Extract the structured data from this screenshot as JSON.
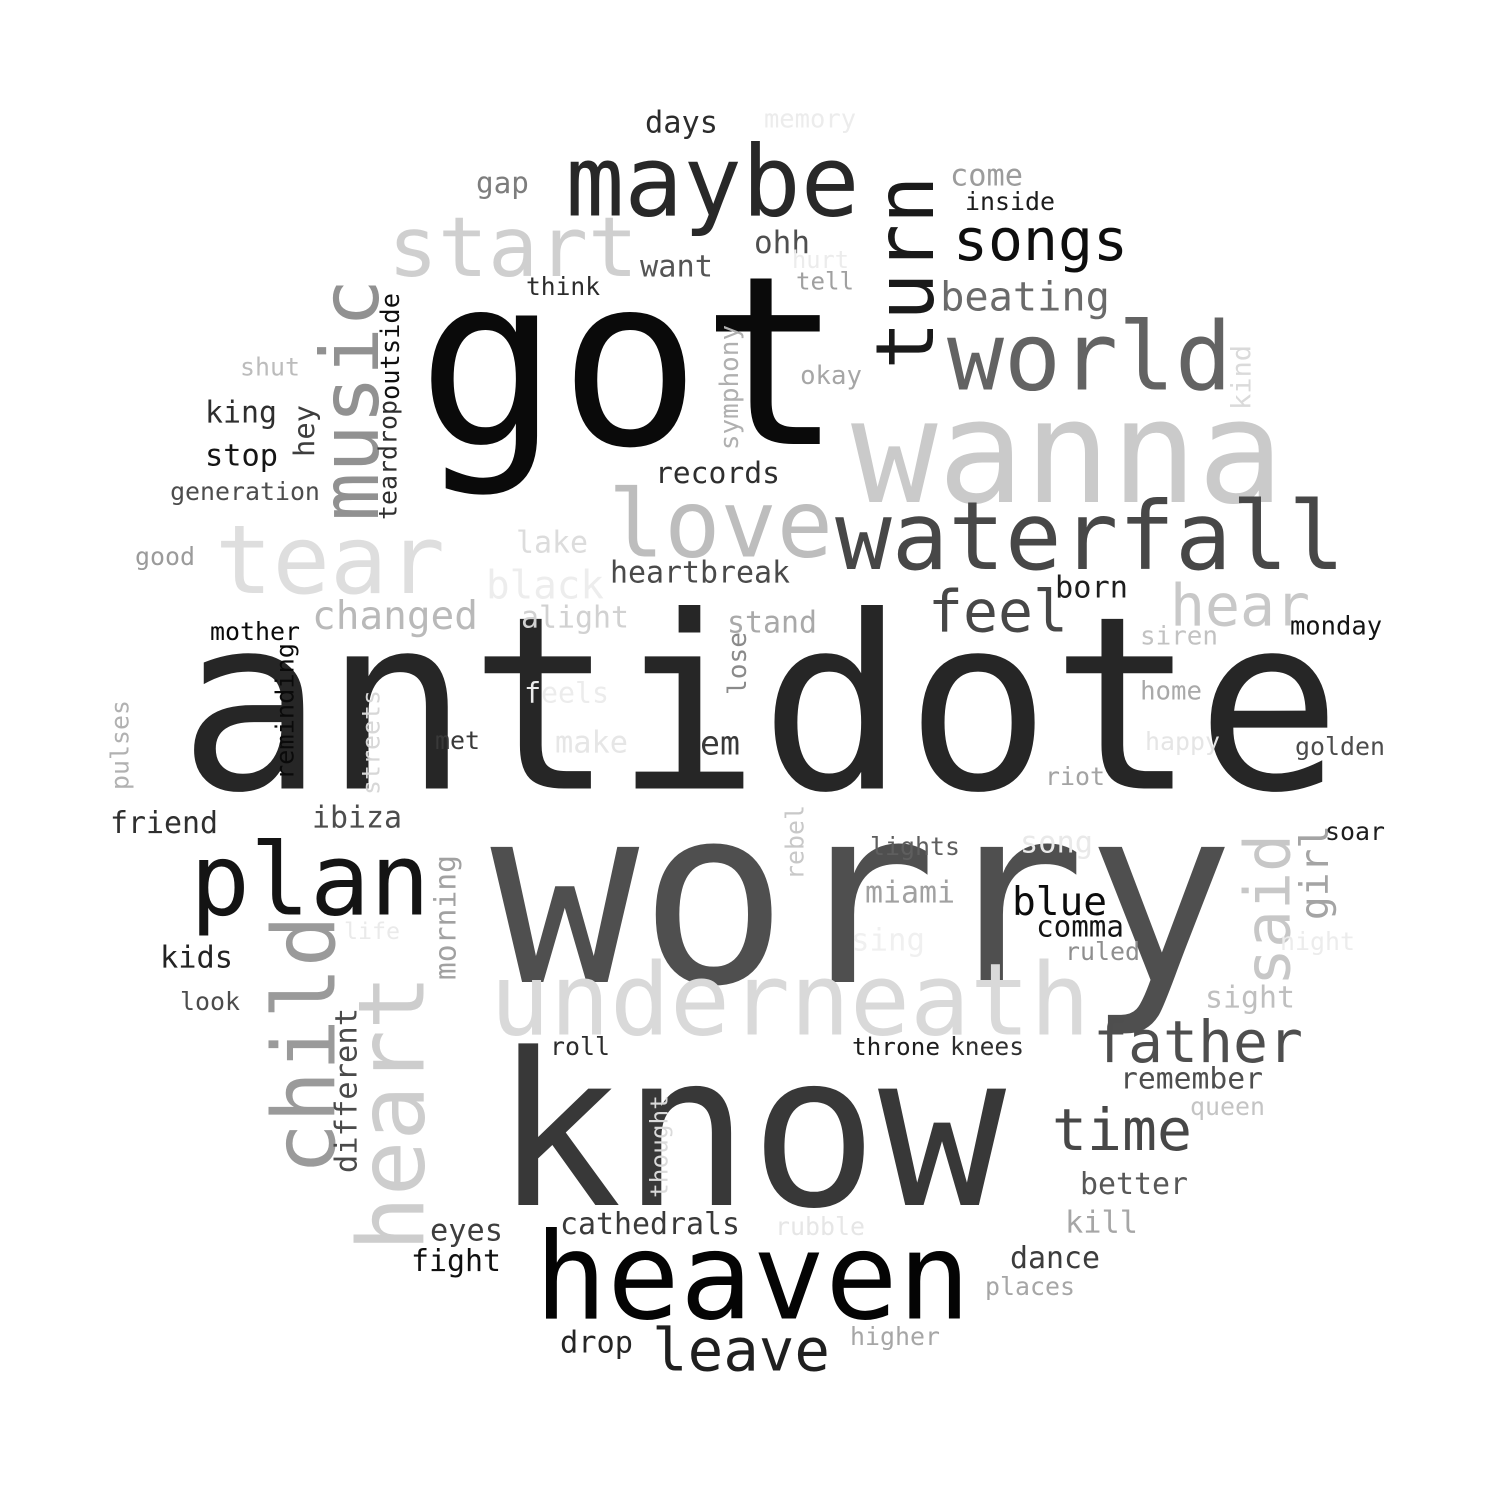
{
  "words": [
    {
      "text": "antidote",
      "color": "#262626"
    },
    {
      "text": "worry",
      "color": "#4f4f4f"
    },
    {
      "text": "know",
      "color": "#383838"
    },
    {
      "text": "got",
      "color": "#0a0a0a"
    },
    {
      "text": "wanna",
      "color": "#cacaca"
    },
    {
      "text": "heaven",
      "color": "#040404"
    },
    {
      "text": "underneath",
      "color": "#d9d9d9"
    },
    {
      "text": "waterfall",
      "color": "#474747"
    },
    {
      "text": "maybe",
      "color": "#282828"
    },
    {
      "text": "tear",
      "color": "#dedede"
    },
    {
      "text": "love",
      "color": "#bdbdbd"
    },
    {
      "text": "plan",
      "color": "#141414"
    },
    {
      "text": "world",
      "color": "#636363"
    },
    {
      "text": "start",
      "color": "#cfcfcf"
    },
    {
      "text": "turn",
      "color": "#1a1a1a"
    },
    {
      "text": "heart",
      "color": "#cdcdcd"
    },
    {
      "text": "child",
      "color": "#9a9a9a"
    },
    {
      "text": "music",
      "color": "#919191"
    },
    {
      "text": "songs",
      "color": "#0e0e0e"
    },
    {
      "text": "father",
      "color": "#4e4e4e"
    },
    {
      "text": "time",
      "color": "#474747"
    },
    {
      "text": "leave",
      "color": "#1f1f1f"
    },
    {
      "text": "feel",
      "color": "#474747"
    },
    {
      "text": "hear",
      "color": "#c8c8c8"
    },
    {
      "text": "said",
      "color": "#c7c7c7"
    },
    {
      "text": "beating",
      "color": "#6a6a6a"
    },
    {
      "text": "changed",
      "color": "#b9b9b9"
    },
    {
      "text": "heartbreak",
      "color": "#4a4a4a"
    },
    {
      "text": "records",
      "color": "#2e2e2e"
    },
    {
      "text": "cathedrals",
      "color": "#3a3a3a"
    },
    {
      "text": "remember",
      "color": "#4e4e4e"
    },
    {
      "text": "blue",
      "color": "#0c0c0c"
    },
    {
      "text": "girl",
      "color": "#a4a4a4"
    },
    {
      "text": "better",
      "color": "#575757"
    },
    {
      "text": "dance",
      "color": "#3c3c3c"
    },
    {
      "text": "different",
      "color": "#4a4a4a"
    },
    {
      "text": "fight",
      "color": "#101010"
    },
    {
      "text": "friend",
      "color": "#2f2f2f"
    },
    {
      "text": "days",
      "color": "#2c2c2c"
    },
    {
      "text": "want",
      "color": "#555555"
    },
    {
      "text": "ohh",
      "color": "#4f4f4f"
    },
    {
      "text": "come",
      "color": "#9c9c9c"
    },
    {
      "text": "inside",
      "color": "#1c1c1c"
    },
    {
      "text": "gap",
      "color": "#7d7d7d"
    },
    {
      "text": "memory",
      "color": "#ececec"
    },
    {
      "text": "hurt",
      "color": "#ececec"
    },
    {
      "text": "tell",
      "color": "#a0a0a0"
    },
    {
      "text": "think",
      "color": "#2c2c2c"
    },
    {
      "text": "okay",
      "color": "#a6a6a6"
    },
    {
      "text": "symphony",
      "color": "#b0b0b0"
    },
    {
      "text": "kind",
      "color": "#dadada"
    },
    {
      "text": "shut",
      "color": "#bcbcbc"
    },
    {
      "text": "teardrop",
      "color": "#2e2e2e"
    },
    {
      "text": "outside",
      "color": "#0f0f0f"
    },
    {
      "text": "king",
      "color": "#2e2e2e"
    },
    {
      "text": "hey",
      "color": "#3e3e3e"
    },
    {
      "text": "stop",
      "color": "#151515"
    },
    {
      "text": "generation",
      "color": "#4d4d4d"
    },
    {
      "text": "good",
      "color": "#9b9b9b"
    },
    {
      "text": "lake",
      "color": "#dcdcdc"
    },
    {
      "text": "black",
      "color": "#ededed"
    },
    {
      "text": "alight",
      "color": "#d1d1d1"
    },
    {
      "text": "born",
      "color": "#1e1e1e"
    },
    {
      "text": "stand",
      "color": "#a9a9a9"
    },
    {
      "text": "lose",
      "color": "#8a8a8a"
    },
    {
      "text": "siren",
      "color": "#c2c2c2"
    },
    {
      "text": "monday",
      "color": "#141414"
    },
    {
      "text": "mother",
      "color": "#090909"
    },
    {
      "text": "reminding",
      "color": "#0a0a0a"
    },
    {
      "text": "feels",
      "color": "#ececec"
    },
    {
      "text": "home",
      "color": "#a9a9a9"
    },
    {
      "text": "make",
      "color": "#e6e6e6"
    },
    {
      "text": "em",
      "color": "#393939"
    },
    {
      "text": "happy",
      "color": "#e5e5e5"
    },
    {
      "text": "golden",
      "color": "#4c4c4c"
    },
    {
      "text": "met",
      "color": "#393939"
    },
    {
      "text": "streets",
      "color": "#d7d7d7"
    },
    {
      "text": "pulses",
      "color": "#b1b1b1"
    },
    {
      "text": "riot",
      "color": "#a3a3a3"
    },
    {
      "text": "ibiza",
      "color": "#4d4d4d"
    },
    {
      "text": "rebel",
      "color": "#c8c8c8"
    },
    {
      "text": "lights",
      "color": "#5e5e5e"
    },
    {
      "text": "song",
      "color": "#e9e9e9"
    },
    {
      "text": "soar",
      "color": "#1e1e1e"
    },
    {
      "text": "morning",
      "color": "#a1a1a1"
    },
    {
      "text": "miami",
      "color": "#a1a1a1"
    },
    {
      "text": "comma",
      "color": "#141414"
    },
    {
      "text": "life",
      "color": "#eaeaea"
    },
    {
      "text": "sing",
      "color": "#f0f0f0"
    },
    {
      "text": "night",
      "color": "#ececec"
    },
    {
      "text": "kids",
      "color": "#232323"
    },
    {
      "text": "ruled",
      "color": "#8e8e8e"
    },
    {
      "text": "look",
      "color": "#4c4c4c"
    },
    {
      "text": "sight",
      "color": "#bfbfbf"
    },
    {
      "text": "roll",
      "color": "#2c2c2c"
    },
    {
      "text": "throne",
      "color": "#1e1e1e"
    },
    {
      "text": "knees",
      "color": "#2e2e2e"
    },
    {
      "text": "thought",
      "color": "#dadada"
    },
    {
      "text": "queen",
      "color": "#c4c4c4"
    },
    {
      "text": "kill",
      "color": "#a6a6a6"
    },
    {
      "text": "eyes",
      "color": "#3e3e3e"
    },
    {
      "text": "rubble",
      "color": "#e6e6e6"
    },
    {
      "text": "places",
      "color": "#a6a6a6"
    },
    {
      "text": "drop",
      "color": "#262626"
    },
    {
      "text": "higher",
      "color": "#a6a6a6"
    }
  ]
}
